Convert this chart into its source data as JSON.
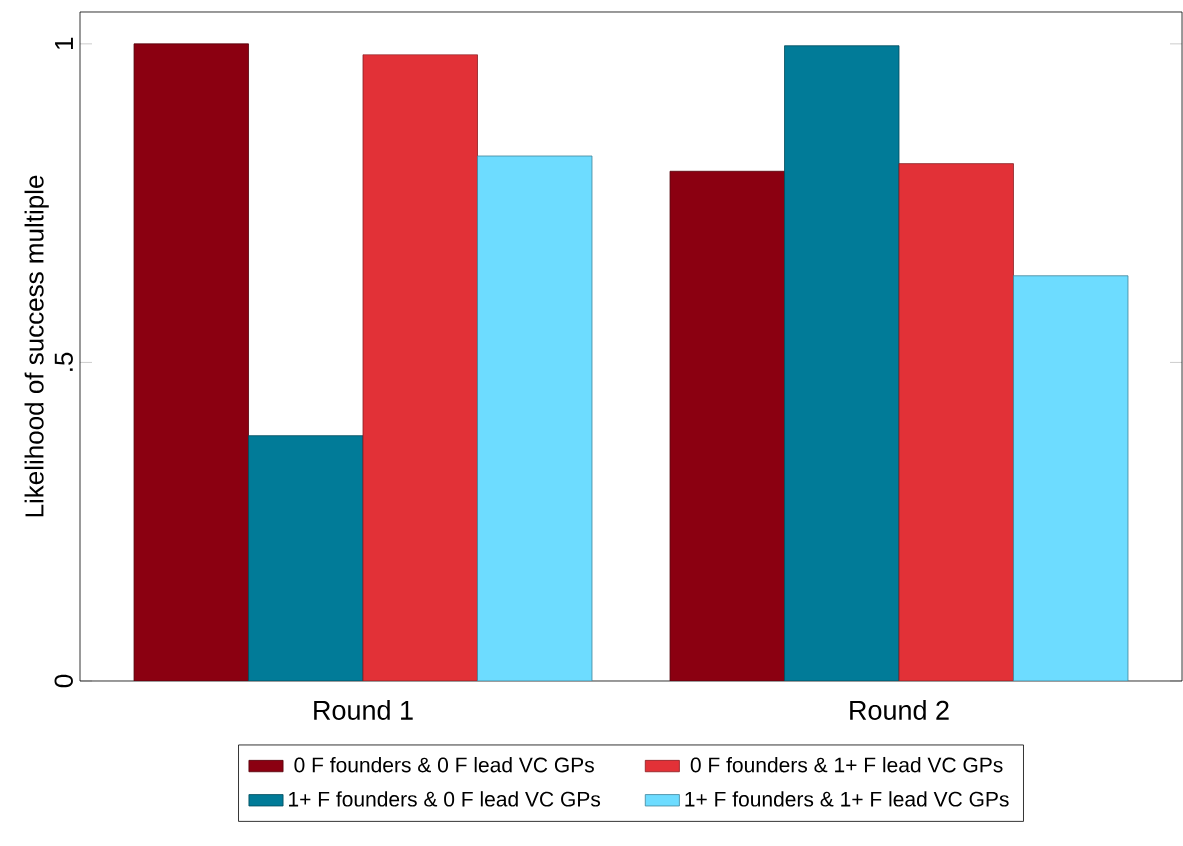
{
  "chart_data": {
    "type": "bar",
    "ylabel": "Likelihood of success multiple",
    "categories": [
      "Round 1",
      "Round 2"
    ],
    "series": [
      {
        "name": "0 F founders & 0 F lead VC GPs",
        "color": "#8b0011",
        "values": [
          1.0,
          0.8
        ]
      },
      {
        "name": "1+ F founders & 0 F lead VC GPs",
        "color": "#017b98",
        "values": [
          0.385,
          0.997
        ]
      },
      {
        "name": "0 F founders & 1+ F lead VC GPs",
        "color": "#e23137",
        "values": [
          0.983,
          0.812
        ]
      },
      {
        "name": "1+ F founders & 1+ F lead VC GPs",
        "color": "#6ddcff",
        "values": [
          0.824,
          0.636
        ]
      }
    ],
    "ylim": [
      0,
      1.05
    ],
    "yticks": [
      {
        "value": 0,
        "label": "0"
      },
      {
        "value": 0.5,
        "label": ".5"
      },
      {
        "value": 1,
        "label": "1"
      }
    ],
    "legend": "bottom"
  }
}
